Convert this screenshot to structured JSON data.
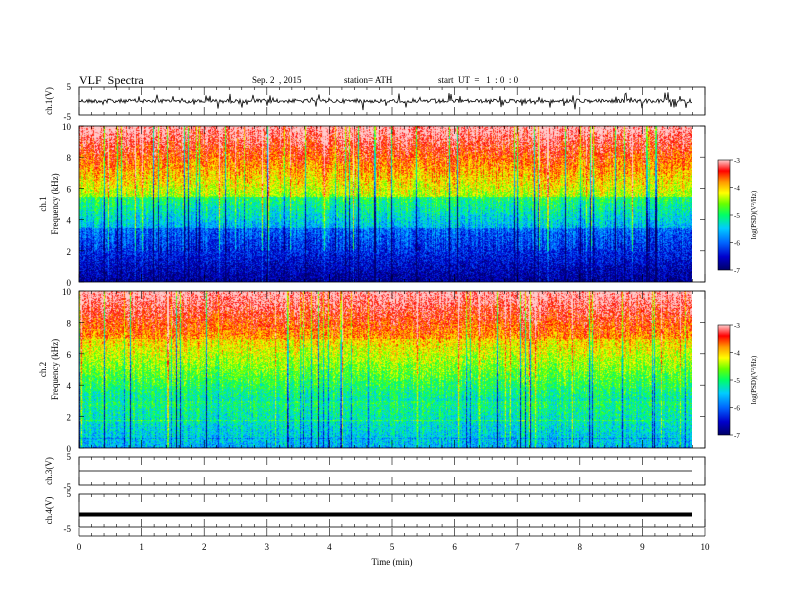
{
  "header": {
    "title": "VLF  Spectra",
    "date": "Sep. 2  , 2015",
    "station": "station= ATH",
    "start_time": "start  UT  =   1  : 0  : 0"
  },
  "colors": {
    "spectrum": [
      "#000066",
      "#0000cc",
      "#0066ff",
      "#00ccff",
      "#00ff66",
      "#66ff00",
      "#ffff00",
      "#ff9900",
      "#ff0000",
      "#ffcccc"
    ]
  },
  "chart_data": [
    {
      "type": "line",
      "name": "ch1-waveform",
      "ylabel": "ch.1(V)",
      "ylim": [
        -5,
        5
      ],
      "y_ticks": [
        "5",
        "-5"
      ],
      "x_range": [
        0,
        10
      ],
      "baseline": 0
    },
    {
      "type": "heatmap",
      "name": "ch1-spectrogram",
      "ylabel_channel": "ch.1",
      "ylabel": "Frequency  (kHz)",
      "ylim": [
        0,
        10
      ],
      "y_ticks": [
        "0",
        "2",
        "4",
        "6",
        "8",
        "10"
      ],
      "x_range": [
        0,
        9.8
      ],
      "colorbar": {
        "label": "log(PSD)(V²/Hz)",
        "ticks": [
          "-3",
          "-4",
          "-5",
          "-6",
          "-7"
        ],
        "range": [
          -7,
          -3
        ]
      }
    },
    {
      "type": "heatmap",
      "name": "ch2-spectrogram",
      "ylabel_channel": "ch.2",
      "ylabel": "Frequency  (kHz)",
      "ylim": [
        0,
        10
      ],
      "y_ticks": [
        "0",
        "2",
        "4",
        "6",
        "8",
        "10"
      ],
      "x_range": [
        0,
        9.8
      ],
      "colorbar": {
        "label": "log(PSD)(V²/Hz)",
        "ticks": [
          "-3",
          "-4",
          "-5",
          "-6",
          "-7"
        ],
        "range": [
          -7,
          -3
        ]
      }
    },
    {
      "type": "line",
      "name": "ch3-waveform",
      "ylabel": "ch.3(V)",
      "ylim": [
        -5,
        5
      ],
      "y_ticks": [
        "5",
        "-5"
      ],
      "x_range": [
        0,
        10
      ],
      "baseline": 0
    },
    {
      "type": "line",
      "name": "ch4-waveform",
      "ylabel": "ch.4(V)",
      "ylim": [
        -5,
        5
      ],
      "y_ticks": [
        "5",
        "-5"
      ],
      "x_range": [
        0,
        10
      ],
      "baseline": 0
    }
  ],
  "x_axis": {
    "label": "Time  (min)",
    "ticks": [
      "0",
      "1",
      "2",
      "3",
      "4",
      "5",
      "6",
      "7",
      "8",
      "9",
      "10"
    ],
    "range": [
      0,
      10
    ]
  }
}
